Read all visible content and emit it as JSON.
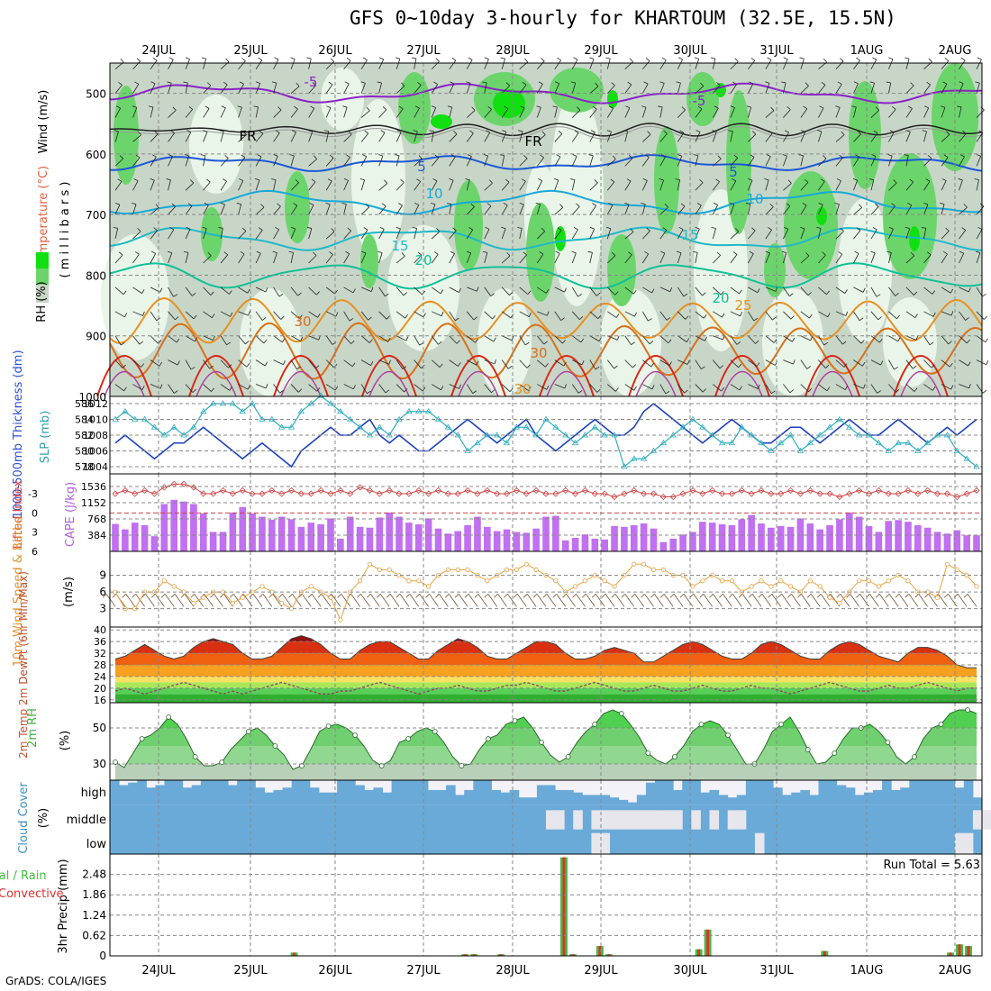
{
  "title": "GFS 0~10day 3-hourly for KHARTOUM (32.5E, 15.5N)",
  "credit": "GrADS: COLA/IGES",
  "dates": [
    "24JUL",
    "25JUL",
    "26JUL",
    "27JUL",
    "28JUL",
    "29JUL",
    "30JUL",
    "31JUL",
    "1AUG",
    "2AUG"
  ],
  "colors": {
    "rh_light": "#e9f5e9",
    "rh_mid": "#c8d6c8",
    "rh_green": "#6bd56b",
    "rh_bright": "#10e010",
    "temp_purple": "#8a22c8",
    "temp_blue": "#1c58d8",
    "temp_cyan": "#18a8d8",
    "temp_teal": "#10c098",
    "temp_orange": "#e89020",
    "temp_red": "#d82818",
    "thickness": "#1c40c0",
    "slp": "#30b0c0",
    "cape": "#c070f0",
    "lifted": "#d04040",
    "wind10": "#e8a040",
    "rh2m": "#58d058",
    "cloud": "#6aaad8",
    "precip_total": "#40c040",
    "precip_conv": "#e03030"
  },
  "chart_data": [
    {
      "id": "upper_air",
      "type": "heatmap",
      "ylabel_parts": [
        "RH (%)",
        "Temperature (°C)",
        "Wind (m/s)"
      ],
      "yunits": "( m i l l i b a r s )",
      "y_ticks": [
        500,
        600,
        700,
        800,
        900,
        1000
      ],
      "ylim": [
        1000,
        450
      ],
      "isotherm_labels": [
        "-5",
        "-5",
        "FR",
        "FR",
        "5",
        "5",
        "10",
        "10",
        "15",
        "15",
        "20",
        "20",
        "25",
        "30",
        "30",
        "30"
      ],
      "rh_legend_colors": [
        "#10e010",
        "#6bd56b",
        "#c8d6c8"
      ]
    },
    {
      "id": "thickness_slp",
      "type": "line",
      "ylabel_left": "1000-500mb Thickness (dm)",
      "ylabel_right": "SLP (mb)",
      "left_ticks": [
        578,
        580,
        582,
        584,
        586
      ],
      "right_ticks": [
        1004,
        1006,
        1008,
        1010,
        1012
      ],
      "thickness": [
        581,
        582,
        581,
        580,
        579,
        580,
        581,
        581,
        582,
        583,
        582,
        581,
        580,
        579,
        580,
        581,
        580,
        579,
        578,
        580,
        581,
        582,
        583,
        582,
        582,
        583,
        584,
        582,
        581,
        582,
        581,
        580,
        580,
        581,
        582,
        583,
        584,
        583,
        582,
        581,
        582,
        583,
        584,
        582,
        581,
        580,
        581,
        582,
        583,
        584,
        583,
        582,
        582,
        583,
        585,
        586,
        585,
        584,
        583,
        582,
        581,
        582,
        583,
        584,
        583,
        582,
        581,
        581,
        582,
        583,
        583,
        582,
        581,
        582,
        583,
        584,
        583,
        582,
        582,
        583,
        584,
        583,
        582,
        581,
        582,
        583,
        582,
        583,
        584
      ],
      "slp": [
        1010,
        1011,
        1010,
        1010,
        1009,
        1008,
        1009,
        1008,
        1009,
        1011,
        1012,
        1012,
        1012,
        1011,
        1012,
        1010,
        1010,
        1009,
        1009,
        1011,
        1012,
        1013,
        1012,
        1011,
        1010,
        1009,
        1008,
        1009,
        1008,
        1010,
        1011,
        1011,
        1011,
        1010,
        1009,
        1008,
        1006,
        1007,
        1008,
        1008,
        1007,
        1009,
        1009,
        1008,
        1010,
        1009,
        1008,
        1007,
        1008,
        1009,
        1008,
        1008,
        1004,
        1005,
        1005,
        1006,
        1007,
        1008,
        1009,
        1010,
        1009,
        1008,
        1007,
        1007,
        1009,
        1008,
        1007,
        1006,
        1007,
        1008,
        1006,
        1007,
        1008,
        1009,
        1010,
        1009,
        1008,
        1008,
        1007,
        1006,
        1007,
        1007,
        1006,
        1007,
        1008,
        1008,
        1006,
        1005,
        1004
      ]
    },
    {
      "id": "cape_li",
      "type": "bar",
      "ylabel_left": "Lifted Index",
      "ylabel_right": "CAPE (J/kg)",
      "left_ticks": [
        "-3",
        "0",
        "3",
        "6"
      ],
      "right_ticks": [
        384,
        768,
        1152,
        1536
      ],
      "cape": [
        650,
        520,
        680,
        620,
        360,
        1120,
        1220,
        1180,
        1120,
        900,
        460,
        460,
        920,
        1050,
        900,
        820,
        750,
        820,
        760,
        580,
        680,
        640,
        780,
        300,
        820,
        580,
        560,
        800,
        920,
        820,
        680,
        640,
        780,
        540,
        420,
        480,
        620,
        820,
        580,
        480,
        520,
        460,
        440,
        540,
        820,
        840,
        260,
        320,
        400,
        300,
        280,
        600,
        580,
        620,
        660,
        540,
        220,
        300,
        400,
        460,
        700,
        680,
        640,
        620,
        760,
        860,
        660,
        560,
        600,
        580,
        780,
        660,
        520,
        620,
        760,
        920,
        820,
        600,
        460,
        720,
        740,
        700,
        620,
        560,
        460,
        420,
        500,
        380,
        380
      ],
      "lifted": [
        -3,
        -3.5,
        -3,
        -3.5,
        -3,
        -4,
        -4.5,
        -4.5,
        -4,
        -3,
        -3,
        -3.5,
        -3,
        -3.5,
        -3,
        -3,
        -3.5,
        -3,
        -3.5,
        -3,
        -3,
        -3.5,
        -3,
        -3.5,
        -3,
        -4,
        -3.5,
        -3,
        -3.5,
        -3,
        -3,
        -3.5,
        -3,
        -3.5,
        -3,
        -3,
        -3.5,
        -3,
        -3.5,
        -3,
        -3,
        -3.5,
        -3,
        -3.5,
        -3,
        -3,
        -3.5,
        -3,
        -3.5,
        -3,
        -3,
        -2.5,
        -3,
        -3.5,
        -3,
        -3,
        -2.5,
        -2.5,
        -3,
        -3.5,
        -3,
        -3.5,
        -3,
        -3,
        -3.5,
        -3,
        -3.5,
        -3,
        -3,
        -3.5,
        -3,
        -3.5,
        -3,
        -3,
        -2.5,
        -3,
        -3.5,
        -3,
        -3.5,
        -3,
        -3,
        -3.5,
        -3,
        -3.5,
        -3,
        -3,
        -2.5,
        -3,
        -3.5
      ]
    },
    {
      "id": "wind10m",
      "type": "line",
      "ylabel": "10m Wind Speed & Barbs",
      "yunits": "(m/s)",
      "y_ticks": [
        3,
        6,
        9
      ],
      "values": [
        6,
        3,
        3,
        6,
        6,
        8,
        7,
        6,
        4,
        5,
        6,
        6,
        4,
        5,
        6,
        7,
        6,
        4,
        3,
        6,
        7,
        6,
        5,
        1,
        6,
        8,
        11,
        10,
        10,
        9,
        8,
        8,
        7,
        9,
        10,
        10,
        10,
        9,
        8,
        9,
        10,
        10,
        11,
        10,
        9,
        8,
        6,
        7,
        8,
        9,
        8,
        7,
        9,
        11,
        11,
        10,
        10,
        9,
        9,
        7,
        8,
        9,
        8,
        8,
        6,
        7,
        8,
        7,
        8,
        7,
        6,
        8,
        7,
        5,
        4,
        6,
        8,
        8,
        7,
        8,
        9,
        8,
        6,
        6,
        5,
        11,
        10,
        9,
        7
      ],
      "wind_dir_deg": [
        20
      ]
    },
    {
      "id": "temp2m",
      "type": "area",
      "ylabel": "2m Temp 2m DewPt (6hr Min/Max)",
      "y_ticks": [
        16,
        20,
        24,
        28,
        32,
        36,
        40
      ],
      "ylim": [
        15,
        41
      ],
      "temp": [
        30,
        31,
        33,
        35,
        33,
        31,
        30,
        31,
        34,
        36,
        37,
        36,
        35,
        32,
        30,
        30,
        31,
        34,
        37,
        38,
        37,
        35,
        32,
        30,
        30,
        33,
        35,
        36,
        36,
        34,
        32,
        30,
        30,
        33,
        35,
        37,
        36,
        34,
        31,
        30,
        30,
        32,
        34,
        36,
        36,
        35,
        32,
        30,
        30,
        31,
        33,
        34,
        33,
        32,
        29,
        29,
        31,
        33,
        35,
        36,
        35,
        33,
        31,
        30,
        30,
        32,
        35,
        36,
        35,
        33,
        31,
        30,
        30,
        33,
        35,
        36,
        35,
        33,
        31,
        30,
        29,
        32,
        34,
        34,
        33,
        31,
        28,
        27,
        27
      ],
      "dewpt": [
        19,
        20,
        19,
        18,
        19,
        20,
        21,
        22,
        21,
        20,
        19,
        18,
        19,
        18,
        19,
        20,
        21,
        22,
        21,
        20,
        19,
        18,
        18,
        19,
        19,
        20,
        21,
        22,
        21,
        20,
        19,
        18,
        19,
        20,
        20,
        21,
        20,
        19,
        19,
        20,
        21,
        21,
        22,
        21,
        20,
        19,
        19,
        20,
        21,
        22,
        21,
        20,
        19,
        19,
        20,
        21,
        20,
        19,
        19,
        20,
        21,
        20,
        19,
        19,
        20,
        21,
        20,
        20,
        19,
        18,
        19,
        20,
        21,
        22,
        21,
        20,
        19,
        19,
        20,
        21,
        20,
        20,
        21,
        22,
        21,
        20,
        19,
        20,
        20
      ]
    },
    {
      "id": "rh2m",
      "type": "area",
      "ylabel": "2m RH",
      "yunits": "(%)",
      "y_ticks": [
        30,
        50
      ],
      "ylim": [
        21,
        64
      ],
      "values": [
        31,
        28,
        36,
        44,
        46,
        50,
        56,
        52,
        44,
        34,
        29,
        29,
        31,
        38,
        43,
        48,
        50,
        46,
        40,
        35,
        27,
        29,
        38,
        48,
        51,
        52,
        50,
        46,
        40,
        32,
        29,
        32,
        42,
        44,
        48,
        50,
        48,
        42,
        34,
        29,
        30,
        38,
        44,
        46,
        52,
        54,
        56,
        50,
        42,
        35,
        31,
        34,
        42,
        48,
        52,
        58,
        60,
        58,
        52,
        45,
        36,
        32,
        30,
        34,
        40,
        48,
        52,
        54,
        52,
        46,
        38,
        30,
        30,
        38,
        48,
        52,
        56,
        48,
        38,
        30,
        31,
        36,
        44,
        50,
        50,
        52,
        48,
        42,
        34,
        30,
        34,
        44,
        50,
        52,
        58,
        60,
        60,
        58
      ]
    },
    {
      "id": "cloud",
      "type": "area",
      "ylabel": "Cloud Cover",
      "yunits": "(%)",
      "levels": [
        "high",
        "middle",
        "low"
      ],
      "high": [
        100,
        80,
        90,
        100,
        70,
        80,
        100,
        100,
        70,
        80,
        100,
        100,
        100,
        80,
        100,
        100,
        70,
        50,
        60,
        70,
        100,
        100,
        70,
        50,
        50,
        100,
        100,
        80,
        60,
        70,
        50,
        100,
        100,
        100,
        100,
        60,
        60,
        80,
        40,
        60,
        100,
        100,
        60,
        50,
        60,
        30,
        30,
        80,
        80,
        60,
        60,
        50,
        40,
        40,
        40,
        30,
        20,
        10,
        40,
        90,
        100,
        100,
        60,
        100,
        100,
        50,
        60,
        40,
        30,
        40,
        100,
        100,
        100,
        70,
        40,
        50,
        60,
        40,
        100,
        100,
        80,
        70,
        40,
        50,
        60,
        100,
        60,
        70,
        100,
        100,
        100,
        100,
        100,
        70,
        100,
        30
      ],
      "middle": [
        100,
        100,
        100,
        100,
        100,
        100,
        100,
        100,
        100,
        100,
        100,
        100,
        100,
        100,
        100,
        100,
        100,
        100,
        100,
        100,
        100,
        100,
        100,
        100,
        100,
        100,
        100,
        100,
        100,
        100,
        100,
        100,
        100,
        100,
        100,
        100,
        100,
        100,
        100,
        100,
        100,
        100,
        100,
        100,
        100,
        100,
        100,
        100,
        100,
        100,
        100,
        100,
        100,
        100,
        100,
        100,
        100,
        100,
        100,
        100,
        100,
        100,
        100,
        100,
        100,
        100,
        100,
        100,
        100,
        100,
        100,
        100,
        100,
        100,
        100,
        100,
        100,
        100,
        100,
        100,
        100,
        100,
        100,
        100,
        100,
        100,
        100,
        100,
        100,
        100,
        100,
        100,
        100,
        100,
        100,
        100
      ],
      "middle_gaps": [
        0,
        0,
        0,
        0,
        0,
        0,
        0,
        0,
        0,
        0,
        0,
        0,
        0,
        0,
        0,
        0,
        0,
        0,
        0,
        0,
        0,
        0,
        0,
        0,
        0,
        0,
        0,
        0,
        0,
        0,
        0,
        0,
        0,
        0,
        0,
        0,
        0,
        0,
        0,
        0,
        0,
        0,
        0,
        0,
        0,
        0,
        0,
        0,
        1,
        1,
        0,
        1,
        0,
        1,
        1,
        1,
        1,
        1,
        1,
        1,
        1,
        1,
        1,
        0,
        1,
        0,
        1,
        0,
        1,
        1,
        0,
        0,
        0,
        0,
        0,
        0,
        0,
        0,
        0,
        0,
        0,
        0,
        0,
        0,
        0,
        0,
        0,
        0,
        0,
        0,
        0,
        0,
        0,
        0,
        0,
        1,
        1,
        1
      ],
      "low_gaps": [
        0,
        0,
        0,
        0,
        0,
        0,
        0,
        0,
        0,
        0,
        0,
        0,
        0,
        0,
        0,
        0,
        0,
        0,
        0,
        0,
        0,
        0,
        0,
        0,
        0,
        0,
        0,
        0,
        0,
        0,
        0,
        0,
        0,
        0,
        0,
        0,
        0,
        0,
        0,
        0,
        0,
        0,
        0,
        0,
        0,
        0,
        0,
        0,
        0,
        0,
        0,
        0,
        0,
        1,
        1,
        0,
        0,
        0,
        0,
        0,
        0,
        0,
        0,
        0,
        0,
        0,
        0,
        0,
        0,
        0,
        0,
        1,
        0,
        0,
        0,
        0,
        0,
        0,
        0,
        0,
        0,
        0,
        0,
        0,
        0,
        0,
        0,
        0,
        0,
        0,
        0,
        0,
        0,
        1,
        1,
        0,
        0,
        0
      ]
    },
    {
      "id": "precip",
      "type": "bar",
      "ylabel_left": "Total / Rain Convective",
      "ylabel": "3hr Precip (mm)",
      "y_ticks": [
        "0",
        "0.62",
        "1.24",
        "1.86",
        "2.48"
      ],
      "ylim": [
        0,
        3.1
      ],
      "run_total": "Run Total = 5.63",
      "values": [
        0,
        0,
        0,
        0,
        0,
        0,
        0,
        0,
        0,
        0,
        0,
        0,
        0,
        0,
        0,
        0,
        0,
        0,
        0,
        0,
        0.1,
        0,
        0,
        0,
        0,
        0,
        0,
        0,
        0,
        0,
        0,
        0,
        0,
        0,
        0,
        0,
        0,
        0,
        0,
        0.05,
        0.05,
        0,
        0,
        0.05,
        0,
        0,
        0,
        0,
        0,
        0,
        3.0,
        0.05,
        0,
        0,
        0.3,
        0.05,
        0,
        0,
        0,
        0,
        0,
        0,
        0,
        0,
        0,
        0.2,
        0.8,
        0,
        0,
        0,
        0,
        0,
        0,
        0,
        0,
        0,
        0,
        0,
        0,
        0.15,
        0,
        0,
        0,
        0,
        0,
        0,
        0,
        0,
        0,
        0,
        0,
        0,
        0,
        0.1,
        0.35,
        0.3,
        0
      ]
    }
  ]
}
